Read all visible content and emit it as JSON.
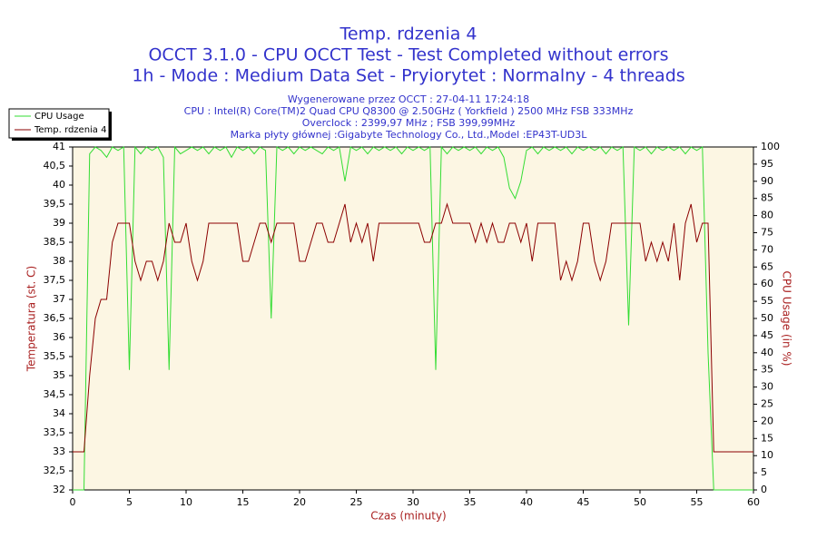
{
  "chart_data": {
    "type": "line",
    "title": "Temp. rdzenia 4",
    "subtitle": [
      "OCCT 3.1.0 - CPU OCCT Test - Test Completed without errors",
      "1h - Mode : Medium Data Set - Pryiorytet : Normalny - 4 threads"
    ],
    "info": [
      "Wygenerowane przez OCCT : 27-04-11 17:24:18",
      "CPU : Intel(R) Core(TM)2 Quad CPU Q8300 @ 2.50GHz ( Yorkfield ) 2500 MHz FSB 333MHz",
      "Overclock : 2399,97 MHz ; FSB 399,99MHz",
      "Marka płyty głównej :Gigabyte Technology Co., Ltd.,Model :EP43T-UD3L"
    ],
    "x_label": "Czas (minuty)",
    "y_label": "Temperatura (st. C)",
    "y2_label": "CPU Usage (in %)",
    "legend": "top-left",
    "grid": false,
    "xlim": [
      0,
      60
    ],
    "xticks": [
      0,
      5,
      10,
      15,
      20,
      25,
      30,
      35,
      40,
      45,
      50,
      55,
      60
    ],
    "ylim": [
      32,
      41
    ],
    "yticks": [
      32,
      {
        "value": 32.5,
        "label": "32,5"
      },
      33,
      {
        "value": 33.5,
        "label": "33,5"
      },
      34,
      {
        "value": 34.5,
        "label": "34,5"
      },
      35,
      {
        "value": 35.5,
        "label": "35,5"
      },
      36,
      {
        "value": 36.5,
        "label": "36,5"
      },
      37,
      {
        "value": 37.5,
        "label": "37,5"
      },
      38,
      {
        "value": 38.5,
        "label": "38,5"
      },
      39,
      {
        "value": 39.5,
        "label": "39,5"
      },
      40,
      {
        "value": 40.5,
        "label": "40,5"
      },
      41
    ],
    "y2lim": [
      0,
      100
    ],
    "y2ticks": [
      0,
      5,
      10,
      15,
      20,
      25,
      30,
      35,
      40,
      45,
      50,
      55,
      60,
      65,
      70,
      75,
      80,
      85,
      90,
      95,
      100
    ],
    "x": [
      0,
      0.5,
      1,
      1.5,
      2,
      2.5,
      3,
      3.5,
      4,
      4.5,
      5,
      5.5,
      6,
      6.5,
      7,
      7.5,
      8,
      8.5,
      9,
      9.5,
      10,
      10.5,
      11,
      11.5,
      12,
      12.5,
      13,
      13.5,
      14,
      14.5,
      15,
      15.5,
      16,
      16.5,
      17,
      17.5,
      18,
      18.5,
      19,
      19.5,
      20,
      20.5,
      21,
      21.5,
      22,
      22.5,
      23,
      23.5,
      24,
      24.5,
      25,
      25.5,
      26,
      26.5,
      27,
      27.5,
      28,
      28.5,
      29,
      29.5,
      30,
      30.5,
      31,
      31.5,
      32,
      32.5,
      33,
      33.5,
      34,
      34.5,
      35,
      35.5,
      36,
      36.5,
      37,
      37.5,
      38,
      38.5,
      39,
      39.5,
      40,
      40.5,
      41,
      41.5,
      42,
      42.5,
      43,
      43.5,
      44,
      44.5,
      45,
      45.5,
      46,
      46.5,
      47,
      47.5,
      48,
      48.5,
      49,
      49.5,
      50,
      50.5,
      51,
      51.5,
      52,
      52.5,
      53,
      53.5,
      54,
      54.5,
      55,
      55.5,
      56,
      56.5,
      57,
      57.5,
      58,
      58.5,
      59,
      59.5,
      60
    ],
    "series": [
      {
        "name": "CPU Usage",
        "color": "#33dd33",
        "axis": "y2",
        "values": [
          0,
          0,
          0,
          98,
          100,
          99,
          97,
          100,
          99,
          100,
          35,
          100,
          98,
          100,
          99,
          100,
          97,
          35,
          100,
          98,
          99,
          100,
          99,
          100,
          98,
          100,
          99,
          100,
          97,
          100,
          99,
          100,
          98,
          100,
          99,
          50,
          100,
          99,
          100,
          98,
          100,
          99,
          100,
          99,
          98,
          100,
          99,
          100,
          90,
          100,
          99,
          100,
          98,
          100,
          99,
          100,
          99,
          100,
          98,
          100,
          99,
          100,
          99,
          100,
          35,
          100,
          98,
          100,
          99,
          100,
          99,
          100,
          98,
          100,
          99,
          100,
          97,
          88,
          85,
          90,
          99,
          100,
          98,
          100,
          99,
          100,
          99,
          100,
          98,
          100,
          99,
          100,
          99,
          100,
          98,
          100,
          99,
          100,
          48,
          100,
          99,
          100,
          98,
          100,
          99,
          100,
          99,
          100,
          98,
          100,
          99,
          100,
          40,
          0,
          0,
          0,
          0,
          0,
          0,
          0,
          0
        ]
      },
      {
        "name": "Temp. rdzenia 4",
        "color": "#8b0000",
        "values": [
          33,
          33,
          33,
          35,
          36.5,
          37,
          37,
          38.5,
          39,
          39,
          39,
          38,
          37.5,
          38,
          38,
          37.5,
          38,
          39,
          38.5,
          38.5,
          39,
          38,
          37.5,
          38,
          39,
          39,
          39,
          39,
          39,
          39,
          38,
          38,
          38.5,
          39,
          39,
          38.5,
          39,
          39,
          39,
          39,
          38,
          38,
          38.5,
          39,
          39,
          38.5,
          38.5,
          39,
          39.5,
          38.5,
          39,
          38.5,
          39,
          38,
          39,
          39,
          39,
          39,
          39,
          39,
          39,
          39,
          38.5,
          38.5,
          39,
          39,
          39.5,
          39,
          39,
          39,
          39,
          38.5,
          39,
          38.5,
          39,
          38.5,
          38.5,
          39,
          39,
          38.5,
          39,
          38,
          39,
          39,
          39,
          39,
          37.5,
          38,
          37.5,
          38,
          39,
          39,
          38,
          37.5,
          38,
          39,
          39,
          39,
          39,
          39,
          39,
          38,
          38.5,
          38,
          38.5,
          38,
          39,
          37.5,
          39,
          39.5,
          38.5,
          39,
          39,
          33,
          33,
          33,
          33,
          33,
          33,
          33,
          33
        ]
      }
    ]
  }
}
